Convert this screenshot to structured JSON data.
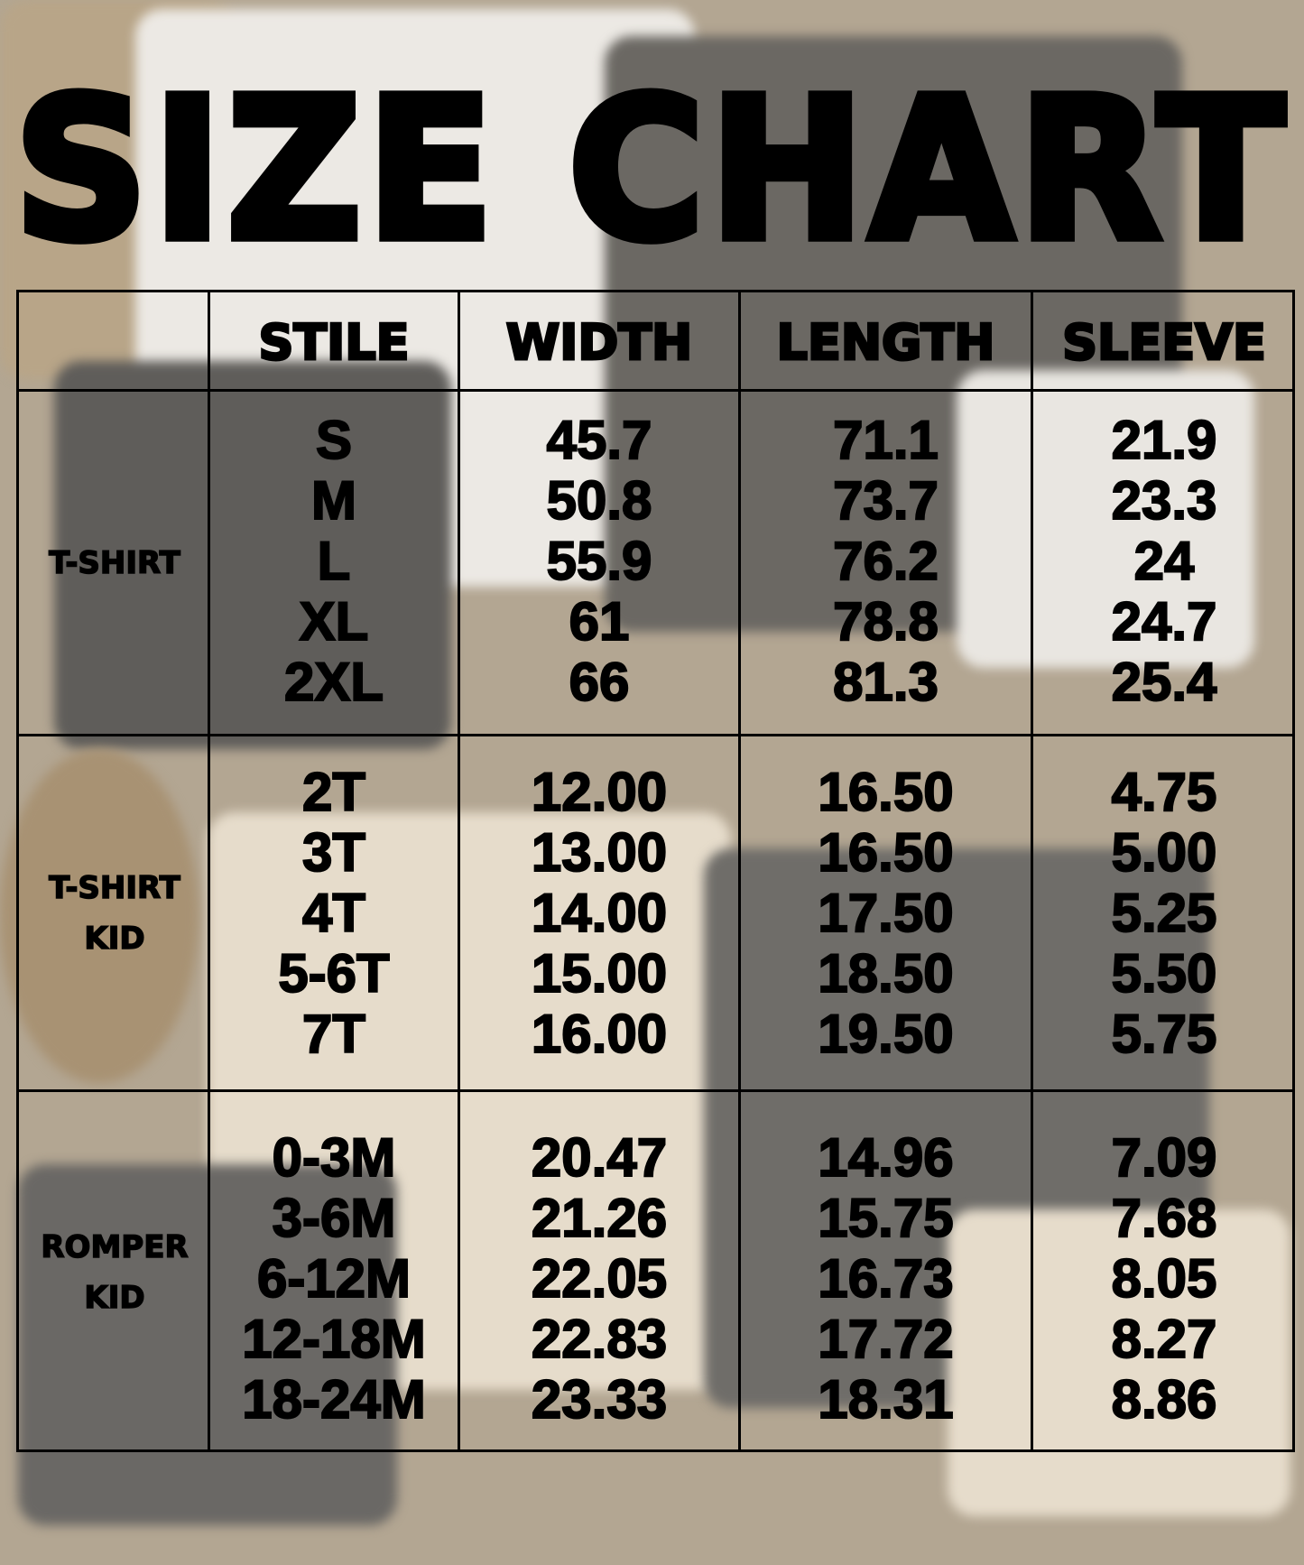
{
  "title": "SIZE CHART",
  "headers": [
    "STILE",
    "WIDTH",
    "LENGTH",
    "SLEEVE"
  ],
  "groups": [
    {
      "label_lines": [
        "T-SHIRT"
      ],
      "rows": [
        [
          "S",
          "45.7",
          "71.1",
          "21.9"
        ],
        [
          "M",
          "50.8",
          "73.7",
          "23.3"
        ],
        [
          "L",
          "55.9",
          "76.2",
          "24"
        ],
        [
          "XL",
          "61",
          "78.8",
          "24.7"
        ],
        [
          "2XL",
          "66",
          "81.3",
          "25.4"
        ]
      ]
    },
    {
      "label_lines": [
        "T-SHIRT",
        "KID"
      ],
      "rows": [
        [
          "2T",
          "12.00",
          "16.50",
          "4.75"
        ],
        [
          "3T",
          "13.00",
          "16.50",
          "5.00"
        ],
        [
          "4T",
          "14.00",
          "17.50",
          "5.25"
        ],
        [
          "5-6T",
          "15.00",
          "18.50",
          "5.50"
        ],
        [
          "7T",
          "16.00",
          "19.50",
          "5.75"
        ]
      ]
    },
    {
      "label_lines": [
        "ROMPER",
        "KID"
      ],
      "rows": [
        [
          "0-3M",
          "20.47",
          "14.96",
          "7.09"
        ],
        [
          "3-6M",
          "21.26",
          "15.75",
          "7.68"
        ],
        [
          "6-12M",
          "22.05",
          "16.73",
          "8.05"
        ],
        [
          "12-18M",
          "22.83",
          "17.72",
          "8.27"
        ],
        [
          "18-24M",
          "23.33",
          "18.31",
          "8.86"
        ]
      ]
    }
  ]
}
